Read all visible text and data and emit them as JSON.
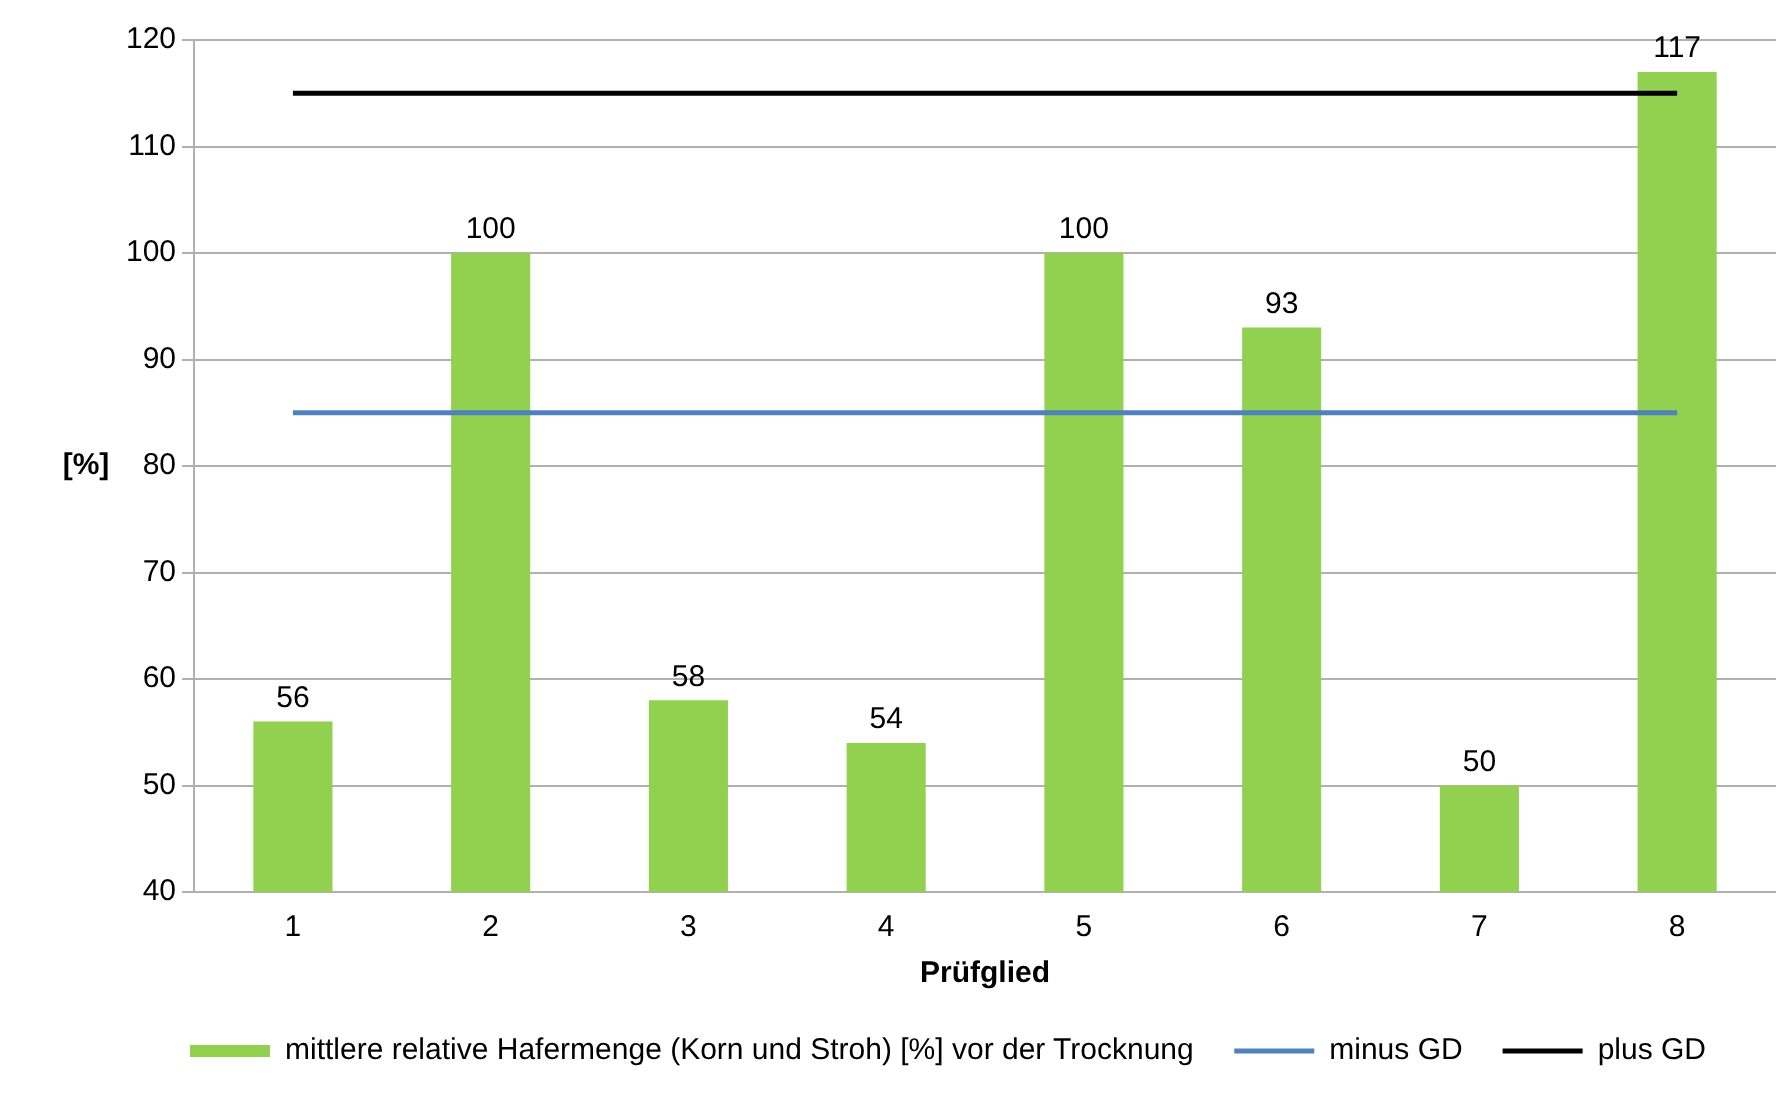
{
  "chart_data": {
    "type": "bar",
    "xlabel": "Prüfglied",
    "ylabel": "[%]",
    "categories": [
      "1",
      "2",
      "3",
      "4",
      "5",
      "6",
      "7",
      "8"
    ],
    "series": [
      {
        "name": "mittlere relative Hafermenge (Korn und Stroh) [%] vor der Trocknung",
        "color": "#92d050",
        "values": [
          56,
          100,
          58,
          54,
          100,
          93,
          50,
          117
        ],
        "value_labels": [
          "56",
          "100",
          "58",
          "54",
          "100",
          "93",
          "50",
          "117"
        ]
      },
      {
        "name": "minus GD",
        "type": "line",
        "color": "#4f81bd",
        "values": [
          85,
          85,
          85,
          85,
          85,
          85,
          85,
          85
        ]
      },
      {
        "name": "plus GD",
        "type": "line",
        "color": "#000000",
        "values": [
          115,
          115,
          115,
          115,
          115,
          115,
          115,
          115
        ]
      }
    ],
    "ylim": [
      40,
      120
    ],
    "yticks": [
      40,
      50,
      60,
      70,
      80,
      90,
      100,
      110,
      120
    ],
    "grid": "y",
    "legend": "bottom",
    "marker": "none"
  }
}
